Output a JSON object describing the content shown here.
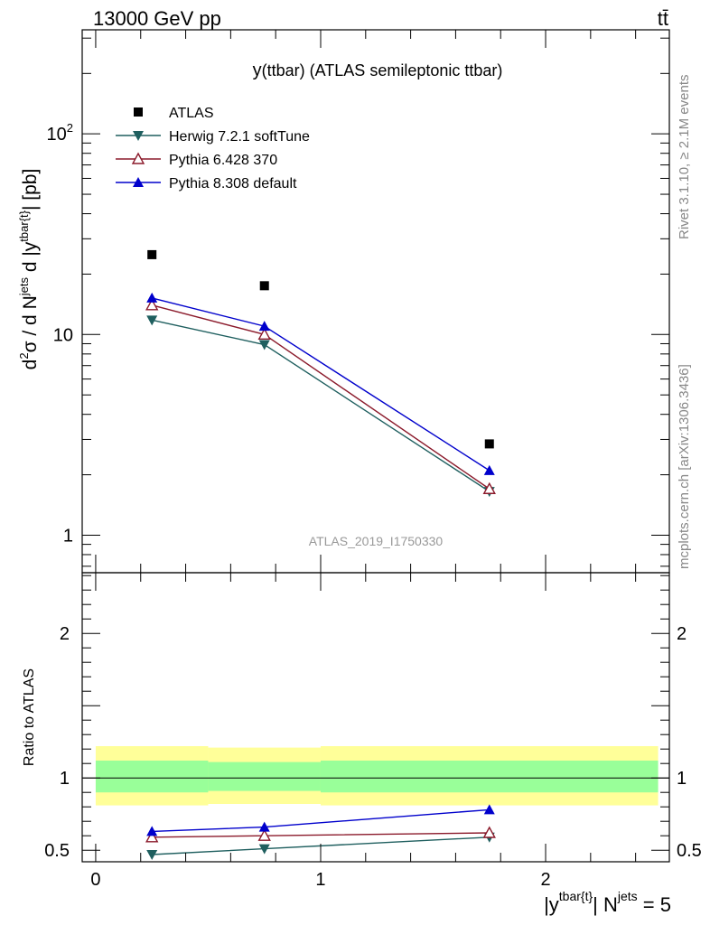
{
  "header": {
    "energy_label": "13000 GeV pp",
    "process_label": "tt̄"
  },
  "side_labels": {
    "rivet": "Rivet 3.1.10, ≥ 2.1M events",
    "mcplots": "mcplots.cern.ch [arXiv:1306.3436]"
  },
  "colors": {
    "atlas": "#000000",
    "herwig": "#1f5f5f",
    "pythia6": "#8b1a2b",
    "pythia8": "#0000cc",
    "band_outer": "#ffff99",
    "band_inner": "#99ff99",
    "watermark": "#999999"
  },
  "chart_data": [
    {
      "type": "scatter",
      "title": "y(ttbar) (ATLAS semileptonic ttbar)",
      "title_main": "y",
      "title_sub": "(ttbar) (ATLAS semileptonic ttbar)",
      "ylabel": "d²σ / d N^jets d |y^tbar{t}| [pb]",
      "ylabel_parts": {
        "a": "d",
        "a_sup": "2",
        "b": "σ / d N",
        "b_sup": "jets",
        "c": " d |y",
        "c_sup": "tbar{t}",
        "d": "| [pb]"
      },
      "yscale": "log",
      "xlim": [
        -0.06,
        2.55
      ],
      "ylim": [
        0.65,
        330
      ],
      "y_tick_labels": [
        {
          "value": 1,
          "label": "1"
        },
        {
          "value": 10,
          "label": "10"
        },
        {
          "value": 100,
          "label": "10",
          "sup": "2"
        }
      ],
      "watermark": "ATLAS_2019_I1750330",
      "legend_position": "top-left",
      "series": [
        {
          "name": "ATLAS",
          "key": "atlas",
          "marker": "square",
          "x": [
            0.25,
            0.75,
            1.75
          ],
          "y": [
            25.0,
            17.5,
            2.85
          ]
        },
        {
          "name": "Herwig 7.2.1 softTune",
          "key": "herwig",
          "marker": "triangle-down",
          "x": [
            0.25,
            0.75,
            1.75
          ],
          "y": [
            11.8,
            8.9,
            1.65
          ]
        },
        {
          "name": "Pythia 6.428 370",
          "key": "pythia6",
          "marker": "triangle-open",
          "x": [
            0.25,
            0.75,
            1.75
          ],
          "y": [
            14.0,
            10.0,
            1.7
          ]
        },
        {
          "name": "Pythia 8.308 default",
          "key": "pythia8",
          "marker": "triangle-up",
          "x": [
            0.25,
            0.75,
            1.75
          ],
          "y": [
            15.2,
            11.0,
            2.1
          ]
        }
      ]
    },
    {
      "type": "line",
      "ylabel": "Ratio to ATLAS",
      "xlabel": "|y^tbar{t}| N^jets = 5",
      "xlabel_parts": {
        "a": "|y",
        "a_sup": "tbar{t}",
        "b": "| N",
        "b_sup": "jets",
        "c": " = 5"
      },
      "xlim": [
        -0.06,
        2.55
      ],
      "ylim": [
        0.42,
        2.42
      ],
      "x_tick_labels": [
        {
          "value": 0,
          "label": "0"
        },
        {
          "value": 1,
          "label": "1"
        },
        {
          "value": 2,
          "label": "2"
        }
      ],
      "y_tick_labels": [
        {
          "value": 0.5,
          "label": "0.5"
        },
        {
          "value": 1,
          "label": "1"
        },
        {
          "value": 2,
          "label": "2"
        }
      ],
      "bands": [
        {
          "x": [
            0.0,
            0.5
          ],
          "outer": [
            0.81,
            1.22
          ],
          "inner": [
            0.9,
            1.12
          ]
        },
        {
          "x": [
            0.5,
            1.0
          ],
          "outer": [
            0.82,
            1.21
          ],
          "inner": [
            0.91,
            1.11
          ]
        },
        {
          "x": [
            1.0,
            2.5
          ],
          "outer": [
            0.81,
            1.22
          ],
          "inner": [
            0.9,
            1.12
          ]
        }
      ],
      "series": [
        {
          "name": "Herwig 7.2.1 softTune",
          "key": "herwig",
          "marker": "triangle-down",
          "x": [
            0.25,
            0.75,
            1.75
          ],
          "y": [
            0.47,
            0.51,
            0.59
          ]
        },
        {
          "name": "Pythia 6.428 370",
          "key": "pythia6",
          "marker": "triangle-open",
          "x": [
            0.25,
            0.75,
            1.75
          ],
          "y": [
            0.59,
            0.6,
            0.62
          ]
        },
        {
          "name": "Pythia 8.308 default",
          "key": "pythia8",
          "marker": "triangle-up",
          "x": [
            0.25,
            0.75,
            1.75
          ],
          "y": [
            0.63,
            0.66,
            0.78
          ]
        }
      ]
    }
  ]
}
